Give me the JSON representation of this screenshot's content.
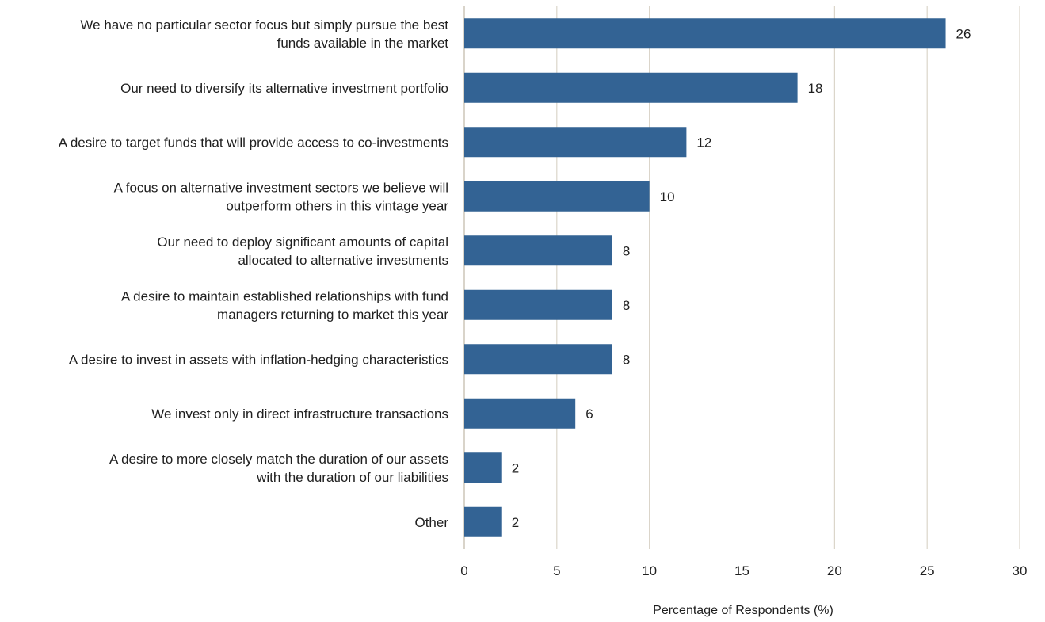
{
  "chart_data": {
    "type": "bar",
    "orientation": "horizontal",
    "title": "",
    "xlabel": "Percentage of Respondents (%)",
    "ylabel": "",
    "xlim": [
      0,
      30
    ],
    "xticks": [
      0,
      5,
      10,
      15,
      20,
      25,
      30
    ],
    "grid": "vertical",
    "bar_color": "#336394",
    "grid_color": "#d4cdbf",
    "categories": [
      [
        "We have no particular sector focus but simply pursue the best",
        "funds available in the market"
      ],
      [
        "Our need to diversify its alternative investment portfolio"
      ],
      [
        "A desire to target funds that will provide access to co-investments"
      ],
      [
        "A focus on alternative investment sectors we believe will",
        "outperform others in this vintage year"
      ],
      [
        "Our need to deploy significant amounts of capital",
        "allocated to alternative investments"
      ],
      [
        "A desire to maintain established relationships with fund",
        "managers returning to market this year"
      ],
      [
        "A desire to invest in assets with inflation-hedging characteristics"
      ],
      [
        "We invest only in direct infrastructure transactions"
      ],
      [
        "A desire to more closely match the duration of our assets",
        "with the duration of our liabilities"
      ],
      [
        "Other"
      ]
    ],
    "values": [
      26,
      18,
      12,
      10,
      8,
      8,
      8,
      6,
      2,
      2
    ]
  }
}
